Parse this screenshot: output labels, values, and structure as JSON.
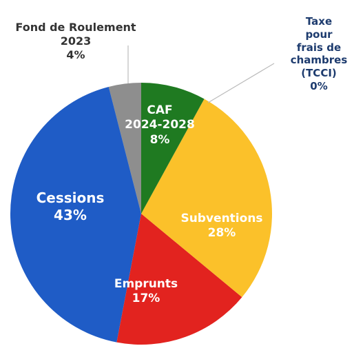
{
  "chart_data": {
    "type": "pie",
    "categories": [
      "CAF\n2024-2028",
      "Taxe pour\nfrais de\nchambres\n(TCCI)",
      "Subventions",
      "Emprunts",
      "Cessions",
      "Fond de Roulement\n2023"
    ],
    "values": [
      8,
      0,
      28,
      17,
      43,
      4
    ],
    "value_labels": [
      "8%",
      "0%",
      "28%",
      "17%",
      "43%",
      "4%"
    ],
    "colors": [
      "#1f7a21",
      "#9a9a9a",
      "#fbc12a",
      "#e2231f",
      "#1f5cc6",
      "#8e8e8e"
    ]
  }
}
